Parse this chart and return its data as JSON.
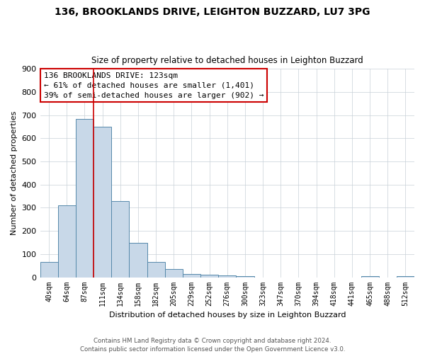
{
  "title": "136, BROOKLANDS DRIVE, LEIGHTON BUZZARD, LU7 3PG",
  "subtitle": "Size of property relative to detached houses in Leighton Buzzard",
  "xlabel": "Distribution of detached houses by size in Leighton Buzzard",
  "ylabel": "Number of detached properties",
  "bar_labels": [
    "40sqm",
    "64sqm",
    "87sqm",
    "111sqm",
    "134sqm",
    "158sqm",
    "182sqm",
    "205sqm",
    "229sqm",
    "252sqm",
    "276sqm",
    "300sqm",
    "323sqm",
    "347sqm",
    "370sqm",
    "394sqm",
    "418sqm",
    "441sqm",
    "465sqm",
    "488sqm",
    "512sqm"
  ],
  "bar_heights": [
    65,
    310,
    685,
    650,
    330,
    150,
    65,
    35,
    15,
    10,
    8,
    5,
    0,
    0,
    0,
    0,
    0,
    0,
    5,
    0,
    5
  ],
  "bar_color": "#c8d8e8",
  "bar_edge_color": "#5588aa",
  "ylim": [
    0,
    900
  ],
  "yticks": [
    0,
    100,
    200,
    300,
    400,
    500,
    600,
    700,
    800,
    900
  ],
  "property_line_index": 3,
  "property_line_color": "#cc0000",
  "annotation_title": "136 BROOKLANDS DRIVE: 123sqm",
  "annotation_line1": "← 61% of detached houses are smaller (1,401)",
  "annotation_line2": "39% of semi-detached houses are larger (902) →",
  "annotation_box_color": "#ffffff",
  "annotation_box_edge": "#cc0000",
  "footer1": "Contains HM Land Registry data © Crown copyright and database right 2024.",
  "footer2": "Contains public sector information licensed under the Open Government Licence v3.0.",
  "background_color": "#ffffff",
  "grid_color": "#c8d0d8"
}
